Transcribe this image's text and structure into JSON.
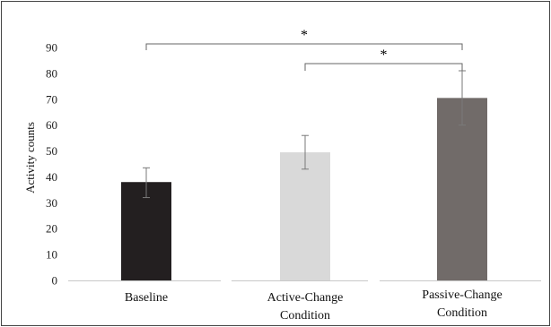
{
  "chart_data": {
    "type": "bar",
    "title": "",
    "xlabel": "",
    "ylabel": "Activity counts",
    "ylim": [
      0,
      90
    ],
    "yticks": [
      "0",
      "10",
      "20",
      "30",
      "40",
      "50",
      "60",
      "70",
      "80",
      "90"
    ],
    "grid": false,
    "categories": [
      [
        "Baseline"
      ],
      [
        "Active-Change",
        "Condition"
      ],
      [
        "Passive-Change",
        "Condition"
      ]
    ],
    "values": [
      38,
      49.5,
      70.5
    ],
    "error_low": [
      32,
      43,
      60
    ],
    "error_high": [
      43.5,
      56,
      81
    ],
    "colors": [
      "#231f20",
      "#d9d9d9",
      "#716b69"
    ],
    "significance": [
      {
        "from": 0,
        "to": 2,
        "label": "*"
      },
      {
        "from": 1,
        "to": 2,
        "label": "*"
      }
    ]
  }
}
